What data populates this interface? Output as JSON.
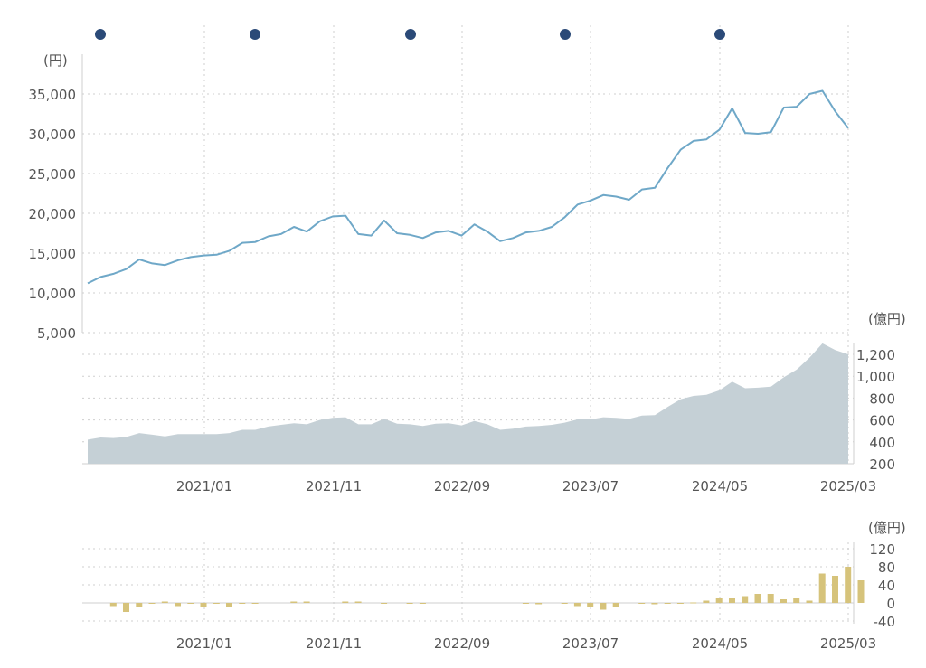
{
  "chart_data": [
    {
      "type": "line",
      "unit": "(円)",
      "ylim": [
        5000,
        37000
      ],
      "yticks": [
        "35,000",
        "30,000",
        "25,000",
        "20,000",
        "15,000",
        "10,000",
        "5,000"
      ],
      "ytick_values": [
        35000,
        30000,
        25000,
        20000,
        15000,
        10000,
        5000
      ],
      "grid": true,
      "series": [
        {
          "color": "#6fa8c8",
          "values": [
            11200,
            12000,
            12400,
            13000,
            14200,
            13700,
            13500,
            14100,
            14500,
            14700,
            14800,
            15300,
            16300,
            16400,
            17100,
            17400,
            18300,
            17700,
            19000,
            19600,
            19700,
            17400,
            17200,
            19100,
            17500,
            17300,
            16900,
            17600,
            17800,
            17200,
            18600,
            17700,
            16500,
            16900,
            17600,
            17800,
            18300,
            19500,
            21100,
            21600,
            22300,
            22100,
            21700,
            23000,
            23200,
            25700,
            28000,
            29100,
            29300,
            30500,
            33200,
            30100,
            30000,
            30200,
            33300,
            33400,
            35000,
            35400,
            32800,
            30700
          ]
        }
      ],
      "markers": {
        "color": "#2b4a78",
        "at_index": [
          9,
          21,
          33,
          45,
          57
        ]
      }
    },
    {
      "type": "area",
      "unit": "(億円)",
      "ylim": [
        200,
        1300
      ],
      "yticks": [
        "1,200",
        "1,000",
        "800",
        "600",
        "400",
        "200"
      ],
      "ytick_values": [
        1200,
        1000,
        800,
        600,
        400,
        200
      ],
      "grid": true,
      "series": [
        {
          "color": "#c5d0d6",
          "values": [
            420,
            440,
            435,
            445,
            480,
            465,
            450,
            470,
            470,
            470,
            470,
            480,
            510,
            510,
            540,
            555,
            570,
            560,
            600,
            620,
            625,
            560,
            560,
            610,
            565,
            560,
            545,
            565,
            570,
            550,
            590,
            560,
            510,
            520,
            540,
            545,
            555,
            575,
            605,
            605,
            625,
            620,
            610,
            640,
            645,
            720,
            790,
            820,
            830,
            870,
            950,
            890,
            895,
            905,
            990,
            1060,
            1170,
            1300,
            1240,
            1200
          ]
        }
      ]
    },
    {
      "type": "bar",
      "unit": "(億円)",
      "ylim": [
        -40,
        120
      ],
      "yticks": [
        "120",
        "80",
        "40",
        "0",
        "-40"
      ],
      "ytick_values": [
        120,
        80,
        40,
        0,
        -40
      ],
      "grid": true,
      "series": [
        {
          "color": "#d6c37b",
          "values": [
            0,
            -7,
            -20,
            -10,
            -2,
            3,
            -7,
            -1,
            -10,
            -2,
            -8,
            -2,
            -2,
            0,
            0,
            3,
            3,
            0,
            0,
            3,
            3,
            0,
            -1,
            0,
            -2,
            -1,
            0,
            0,
            0,
            0,
            0,
            0,
            0,
            -2,
            -3,
            0,
            -1,
            -7,
            -10,
            -15,
            -10,
            0,
            -1,
            -3,
            -1,
            -2,
            1,
            5,
            10,
            10,
            15,
            20,
            20,
            8,
            10,
            5,
            65,
            60,
            80,
            50
          ]
        }
      ]
    }
  ],
  "x_axis": {
    "tick_labels": [
      "2021/01",
      "2021/11",
      "2022/09",
      "2023/07",
      "2024/05",
      "2025/03"
    ]
  }
}
